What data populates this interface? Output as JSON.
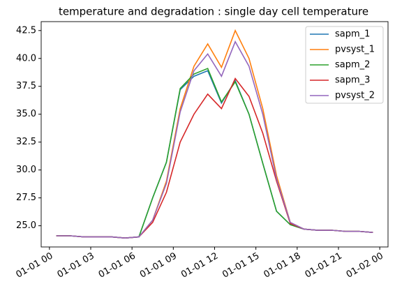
{
  "chart_data": {
    "type": "line",
    "title": "temperature and degradation : single day cell temperature",
    "x": [
      0.5,
      1.5,
      2.5,
      3.5,
      4.5,
      5.5,
      6.5,
      7.5,
      8.5,
      9.5,
      10.5,
      11.5,
      12.5,
      13.5,
      14.5,
      15.5,
      16.5,
      17.5,
      18.5,
      19.5,
      20.5,
      21.5,
      22.5,
      23.5
    ],
    "xlim": [
      -0.6,
      24.6
    ],
    "xticks": [
      {
        "value": 0,
        "label": "01-01 00"
      },
      {
        "value": 3,
        "label": "01-01 03"
      },
      {
        "value": 6,
        "label": "01-01 06"
      },
      {
        "value": 9,
        "label": "01-01 09"
      },
      {
        "value": 12,
        "label": "01-01 12"
      },
      {
        "value": 15,
        "label": "01-01 15"
      },
      {
        "value": 18,
        "label": "01-01 18"
      },
      {
        "value": 21,
        "label": "01-01 21"
      },
      {
        "value": 24,
        "label": "01-02 00"
      }
    ],
    "ylim": [
      23.1,
      43.3
    ],
    "yticks": [
      {
        "value": 25,
        "label": "25.0"
      },
      27.5,
      {
        "value": 30,
        "label": "30.0"
      },
      32.5,
      {
        "value": 35,
        "label": "35.0"
      },
      37.5,
      {
        "value": 40,
        "label": "40.0"
      },
      42.5
    ],
    "legend": "upper right",
    "series": [
      {
        "name": "sapm_1",
        "color": "#1f77b4",
        "values": [
          24.1,
          24.1,
          24.0,
          24.0,
          24.0,
          23.9,
          24.0,
          27.5,
          30.7,
          37.2,
          38.4,
          38.9,
          36.0,
          38.0,
          35.0,
          30.6,
          26.3,
          25.1,
          24.7,
          24.6,
          24.6,
          24.5,
          24.5,
          24.4
        ]
      },
      {
        "name": "pvsyst_1",
        "color": "#ff7f0e",
        "values": [
          24.1,
          24.1,
          24.0,
          24.0,
          24.0,
          23.9,
          24.0,
          25.5,
          29.0,
          35.5,
          39.3,
          41.3,
          39.2,
          42.5,
          40.0,
          35.5,
          29.5,
          25.3,
          24.7,
          24.6,
          24.6,
          24.5,
          24.5,
          24.4
        ]
      },
      {
        "name": "sapm_2",
        "color": "#2ca02c",
        "values": [
          24.1,
          24.1,
          24.0,
          24.0,
          24.0,
          23.9,
          24.0,
          27.5,
          30.7,
          37.3,
          38.6,
          39.1,
          36.1,
          37.9,
          35.0,
          30.6,
          26.3,
          25.1,
          24.7,
          24.6,
          24.6,
          24.5,
          24.5,
          24.4
        ]
      },
      {
        "name": "sapm_3",
        "color": "#d62728",
        "values": [
          24.1,
          24.1,
          24.0,
          24.0,
          24.0,
          23.9,
          24.0,
          25.3,
          28.0,
          32.5,
          35.0,
          36.8,
          35.5,
          38.2,
          36.6,
          33.3,
          29.0,
          25.2,
          24.7,
          24.6,
          24.6,
          24.5,
          24.5,
          24.4
        ]
      },
      {
        "name": "pvsyst_2",
        "color": "#9467bd",
        "values": [
          24.1,
          24.1,
          24.0,
          24.0,
          24.0,
          23.9,
          24.0,
          25.5,
          28.8,
          35.2,
          38.9,
          40.4,
          38.4,
          41.5,
          39.3,
          35.0,
          29.2,
          25.3,
          24.7,
          24.6,
          24.6,
          24.5,
          24.5,
          24.4
        ]
      }
    ]
  }
}
